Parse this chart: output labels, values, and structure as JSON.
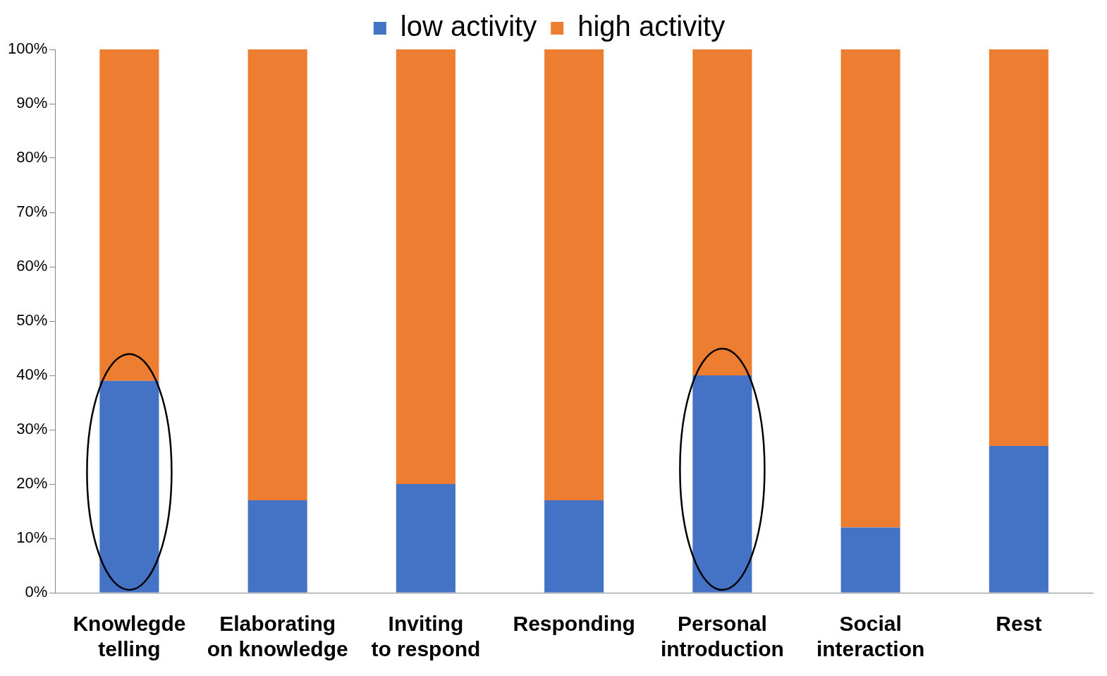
{
  "chart_data": {
    "type": "bar",
    "stacked": true,
    "legend": "top",
    "grid": false,
    "categories": [
      "Knowlegde telling",
      "Elaborating on knowledge",
      "Inviting to respond",
      "Responding",
      "Personal introduction",
      "Social interaction",
      "Rest"
    ],
    "series": [
      {
        "name": "low activity",
        "color": "#4472c4",
        "values": [
          39,
          17,
          20,
          17,
          40,
          12,
          27
        ]
      },
      {
        "name": "high activity",
        "color": "#ed7d31",
        "values": [
          61,
          83,
          80,
          83,
          60,
          88,
          73
        ]
      }
    ],
    "ylim": [
      0,
      100
    ],
    "yticks": [
      {
        "value": 0,
        "label": "0%"
      },
      {
        "value": 10,
        "label": "10%"
      },
      {
        "value": 20,
        "label": "20%"
      },
      {
        "value": 30,
        "label": "30%"
      },
      {
        "value": 40,
        "label": "40%"
      },
      {
        "value": 50,
        "label": "50%"
      },
      {
        "value": 60,
        "label": "60%"
      },
      {
        "value": 70,
        "label": "70%"
      },
      {
        "value": 80,
        "label": "80%"
      },
      {
        "value": 90,
        "label": "90%"
      },
      {
        "value": 100,
        "label": "100%"
      }
    ]
  }
}
